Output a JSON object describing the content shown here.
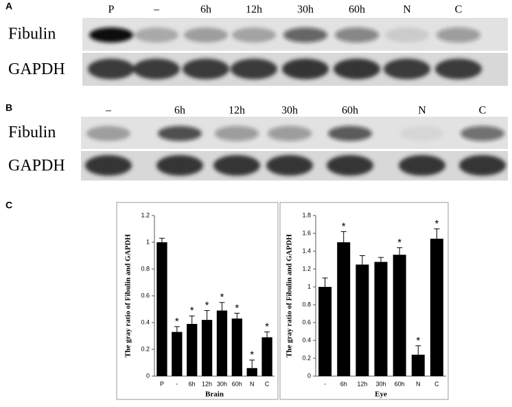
{
  "blots": [
    {
      "label": "A",
      "lanes": [
        "P",
        "–",
        "6h",
        "12h",
        "30h",
        "60h",
        "N",
        "C"
      ],
      "rows": [
        "Fibulin",
        "GAPDH"
      ]
    },
    {
      "label": "B",
      "lanes": [
        "–",
        "6h",
        "12h",
        "30h",
        "60h",
        "N",
        "C"
      ],
      "rows": [
        "Fibulin",
        "GAPDH"
      ]
    }
  ],
  "panel_c": "C",
  "chart_data": [
    {
      "type": "bar",
      "ylabel": "The gray ratio of Fibulin and GAPDH",
      "xlabel": "Brain",
      "categories": [
        "P",
        "-",
        "6h",
        "12h",
        "30h",
        "60h",
        "N",
        "C"
      ],
      "values": [
        1.0,
        0.33,
        0.39,
        0.42,
        0.49,
        0.43,
        0.06,
        0.29
      ],
      "errors": [
        0.03,
        0.04,
        0.06,
        0.07,
        0.06,
        0.04,
        0.06,
        0.04
      ],
      "markers": [
        null,
        "*",
        "*",
        "*",
        "*",
        "*",
        "*",
        "*"
      ],
      "color": "#000000",
      "ylim": [
        0,
        1.2
      ],
      "yticks": [
        0,
        0.2,
        0.4,
        0.6,
        0.8,
        1,
        1.2
      ]
    },
    {
      "type": "bar",
      "ylabel": "The gray ratio of Fibulin and GAPDH",
      "xlabel": "Eye",
      "categories": [
        "-",
        "6h",
        "12h",
        "30h",
        "60h",
        "N",
        "C"
      ],
      "values": [
        1.0,
        1.5,
        1.25,
        1.28,
        1.36,
        0.24,
        1.54
      ],
      "errors": [
        0.1,
        0.12,
        0.1,
        0.05,
        0.08,
        0.1,
        0.11
      ],
      "markers": [
        null,
        "*",
        null,
        null,
        "*",
        "*",
        "*"
      ],
      "color": "#000000",
      "ylim": [
        0,
        1.8
      ],
      "yticks": [
        0,
        0.2,
        0.4,
        0.6,
        0.8,
        1,
        1.2,
        1.4,
        1.6,
        1.8
      ]
    }
  ]
}
